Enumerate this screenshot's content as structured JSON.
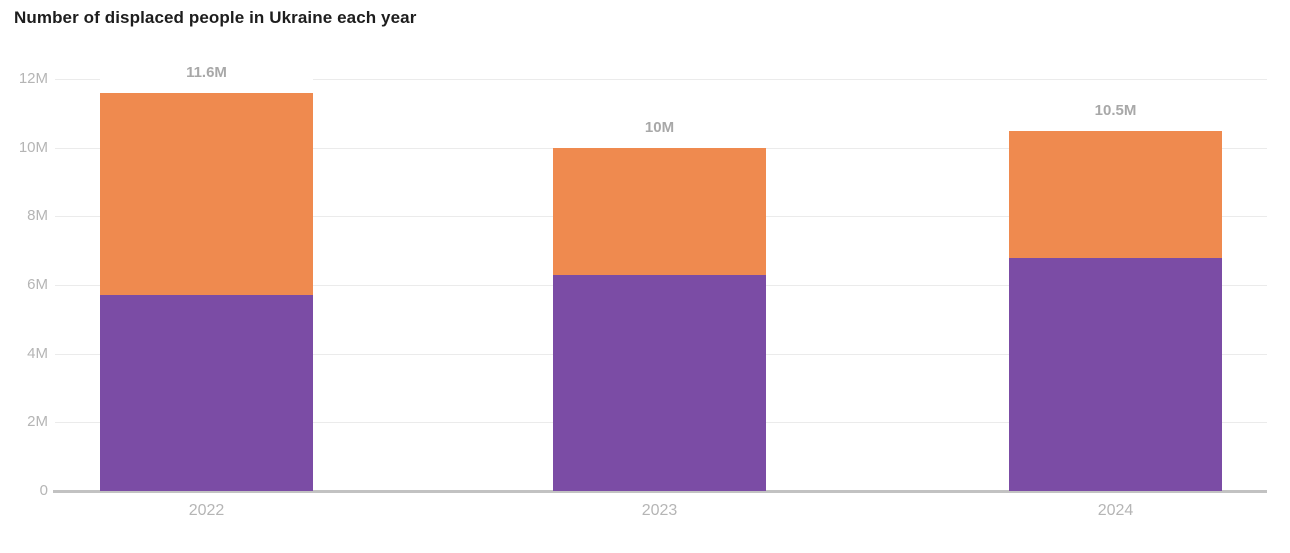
{
  "title": "Number of displaced people in Ukraine each year",
  "colors": {
    "orange": "#EF8A4F",
    "purple": "#7B4CA5",
    "title_text": "#1D1D1D",
    "data_label": "#A8A8A8",
    "axis_label": "#B5B5B5",
    "gridline": "#EBEBEB",
    "baseline": "#C2C2C2",
    "background": "#FFFFFF"
  },
  "chart_data": {
    "type": "bar",
    "stacked": true,
    "title": "Number of displaced people in Ukraine each year",
    "categories": [
      "2022",
      "2023",
      "2024"
    ],
    "series": [
      {
        "name": "bottom-purple-segment",
        "color_key": "purple",
        "values": [
          5.7,
          6.3,
          6.8
        ]
      },
      {
        "name": "top-orange-segment",
        "color_key": "orange",
        "values": [
          5.9,
          3.7,
          3.7
        ]
      }
    ],
    "totals": [
      11.6,
      10.0,
      10.5
    ],
    "total_labels": [
      "11.6M",
      "10M",
      "10.5M"
    ],
    "xlabel": "",
    "ylabel": "",
    "ylim": [
      0,
      12
    ],
    "ytick_interval": 2,
    "ytick_labels": [
      "0",
      "2M",
      "4M",
      "6M",
      "8M",
      "10M",
      "12M"
    ],
    "grid": true,
    "legend": "none"
  }
}
